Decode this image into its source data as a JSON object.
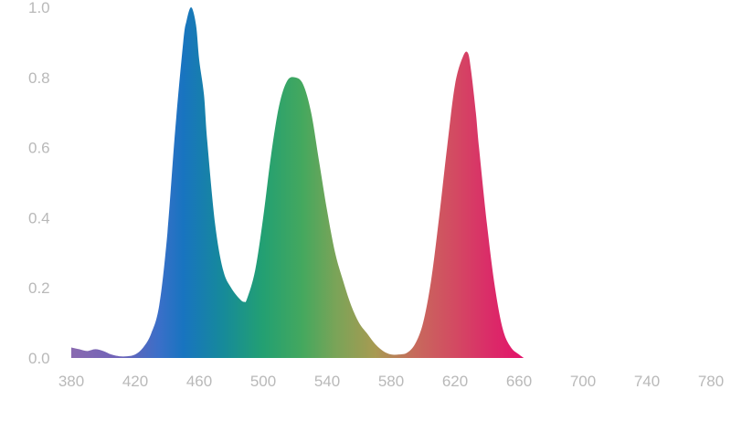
{
  "chart_data": {
    "type": "area",
    "x": [
      380,
      385,
      390,
      395,
      400,
      405,
      410,
      415,
      420,
      425,
      430,
      435,
      440,
      445,
      450,
      452,
      455,
      458,
      460,
      463,
      465,
      470,
      475,
      480,
      485,
      488,
      490,
      495,
      500,
      505,
      510,
      515,
      520,
      525,
      530,
      535,
      540,
      545,
      550,
      555,
      560,
      565,
      570,
      575,
      580,
      585,
      590,
      595,
      600,
      605,
      610,
      615,
      620,
      625,
      628,
      630,
      633,
      635,
      640,
      645,
      650,
      655,
      660,
      663
    ],
    "series": [
      {
        "values": [
          0.03,
          0.025,
          0.02,
          0.025,
          0.02,
          0.01,
          0.005,
          0.005,
          0.01,
          0.03,
          0.07,
          0.15,
          0.35,
          0.65,
          0.9,
          0.96,
          1.0,
          0.95,
          0.85,
          0.75,
          0.62,
          0.38,
          0.25,
          0.2,
          0.17,
          0.16,
          0.17,
          0.25,
          0.4,
          0.58,
          0.72,
          0.79,
          0.8,
          0.78,
          0.7,
          0.56,
          0.42,
          0.3,
          0.22,
          0.15,
          0.1,
          0.07,
          0.04,
          0.02,
          0.01,
          0.01,
          0.015,
          0.04,
          0.1,
          0.22,
          0.4,
          0.6,
          0.78,
          0.86,
          0.87,
          0.82,
          0.7,
          0.6,
          0.38,
          0.2,
          0.08,
          0.03,
          0.01,
          0.0
        ]
      }
    ],
    "x_ticks": [
      "380",
      "420",
      "460",
      "500",
      "540",
      "580",
      "620",
      "660",
      "700",
      "740",
      "780"
    ],
    "y_ticks": [
      "0.0",
      "0.2",
      "0.4",
      "0.6",
      "0.8",
      "1.0"
    ],
    "xlim": [
      380,
      780
    ],
    "ylim": [
      0,
      1.0
    ],
    "grid": false,
    "gradient_stops": [
      {
        "wavelength": 380,
        "color": "#8a6ab0"
      },
      {
        "wavelength": 410,
        "color": "#6e63b8"
      },
      {
        "wavelength": 435,
        "color": "#3a6fc8"
      },
      {
        "wavelength": 450,
        "color": "#1874c0"
      },
      {
        "wavelength": 475,
        "color": "#168a9a"
      },
      {
        "wavelength": 500,
        "color": "#23a072"
      },
      {
        "wavelength": 525,
        "color": "#45a85e"
      },
      {
        "wavelength": 545,
        "color": "#79a458"
      },
      {
        "wavelength": 570,
        "color": "#a79a52"
      },
      {
        "wavelength": 595,
        "color": "#c76a5c"
      },
      {
        "wavelength": 620,
        "color": "#d34a62"
      },
      {
        "wavelength": 640,
        "color": "#da2e68"
      },
      {
        "wavelength": 663,
        "color": "#e3136a"
      }
    ]
  }
}
